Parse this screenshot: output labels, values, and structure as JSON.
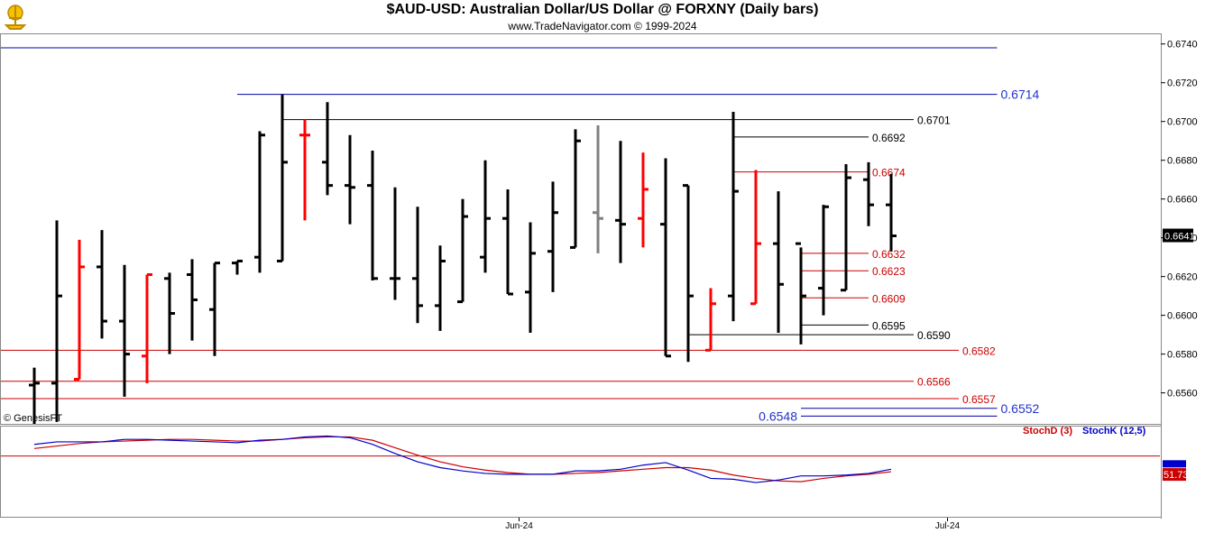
{
  "header": {
    "title": "$AUD-USD:  Australian Dollar/US Dollar @ FORXNY  (Daily bars)",
    "subtitle": "www.TradeNavigator.com © 1999-2024",
    "copyright": "© GenesisFT"
  },
  "colors": {
    "bar_up_default": "#000000",
    "bar_red": "#ff0000",
    "bar_gray": "#808080",
    "level_blue": "#0000aa",
    "level_red": "#cc0000",
    "level_black": "#000000",
    "stoch_d": "#cc0000",
    "stoch_k": "#0000cc"
  },
  "chart_data": [
    {
      "type": "ohlc",
      "title": "$AUD-USD:  Australian Dollar/US Dollar @ FORXNY  (Daily bars)",
      "ylim": [
        0.6544,
        0.6745
      ],
      "y_ticks": [
        "0.6740",
        "0.6720",
        "0.6700",
        "0.6680",
        "0.6660",
        "0.6640",
        "0.6620",
        "0.6600",
        "0.6580",
        "0.6560"
      ],
      "last_price_label": "0.6641",
      "x_labels": [
        {
          "label": "Jun-24",
          "index": 21.5
        },
        {
          "label": "Jul-24",
          "index": 40.5
        }
      ],
      "bars": [
        {
          "o": 0.6564,
          "h": 0.6573,
          "l": 0.6544,
          "c": 0.6565,
          "color": "black"
        },
        {
          "o": 0.6565,
          "h": 0.6649,
          "l": 0.6545,
          "c": 0.661,
          "color": "black"
        },
        {
          "o": 0.6567,
          "h": 0.6639,
          "l": 0.6567,
          "c": 0.6625,
          "color": "red"
        },
        {
          "o": 0.6625,
          "h": 0.6644,
          "l": 0.6588,
          "c": 0.6597,
          "color": "black"
        },
        {
          "o": 0.6597,
          "h": 0.6626,
          "l": 0.6558,
          "c": 0.658,
          "color": "black"
        },
        {
          "o": 0.6579,
          "h": 0.6621,
          "l": 0.6565,
          "c": 0.6621,
          "color": "red"
        },
        {
          "o": 0.6619,
          "h": 0.6622,
          "l": 0.658,
          "c": 0.6601,
          "color": "black"
        },
        {
          "o": 0.6621,
          "h": 0.6629,
          "l": 0.6587,
          "c": 0.6608,
          "color": "black"
        },
        {
          "o": 0.6603,
          "h": 0.6627,
          "l": 0.6579,
          "c": 0.6627,
          "color": "black"
        },
        {
          "o": 0.6627,
          "h": 0.6628,
          "l": 0.6621,
          "c": 0.6628,
          "color": "black"
        },
        {
          "o": 0.663,
          "h": 0.6695,
          "l": 0.6622,
          "c": 0.6693,
          "color": "black"
        },
        {
          "o": 0.6628,
          "h": 0.6714,
          "l": 0.6628,
          "c": 0.6679,
          "color": "black"
        },
        {
          "o": 0.6693,
          "h": 0.6701,
          "l": 0.6649,
          "c": 0.6693,
          "color": "red"
        },
        {
          "o": 0.6679,
          "h": 0.671,
          "l": 0.6662,
          "c": 0.6667,
          "color": "black"
        },
        {
          "o": 0.6667,
          "h": 0.6693,
          "l": 0.6647,
          "c": 0.6666,
          "color": "black"
        },
        {
          "o": 0.6667,
          "h": 0.6685,
          "l": 0.6618,
          "c": 0.6619,
          "color": "black"
        },
        {
          "o": 0.6619,
          "h": 0.6666,
          "l": 0.6608,
          "c": 0.6619,
          "color": "black"
        },
        {
          "o": 0.6619,
          "h": 0.6656,
          "l": 0.6596,
          "c": 0.6605,
          "color": "black"
        },
        {
          "o": 0.6605,
          "h": 0.6636,
          "l": 0.6592,
          "c": 0.6628,
          "color": "black"
        },
        {
          "o": 0.6607,
          "h": 0.666,
          "l": 0.6607,
          "c": 0.6651,
          "color": "black"
        },
        {
          "o": 0.663,
          "h": 0.668,
          "l": 0.6622,
          "c": 0.665,
          "color": "black"
        },
        {
          "o": 0.665,
          "h": 0.6665,
          "l": 0.6611,
          "c": 0.6611,
          "color": "black"
        },
        {
          "o": 0.6612,
          "h": 0.6648,
          "l": 0.6591,
          "c": 0.6632,
          "color": "black"
        },
        {
          "o": 0.6633,
          "h": 0.6669,
          "l": 0.6612,
          "c": 0.6653,
          "color": "black"
        },
        {
          "o": 0.6635,
          "h": 0.6696,
          "l": 0.6635,
          "c": 0.669,
          "color": "black"
        },
        {
          "o": 0.6653,
          "h": 0.6698,
          "l": 0.6632,
          "c": 0.665,
          "color": "gray"
        },
        {
          "o": 0.6649,
          "h": 0.669,
          "l": 0.6627,
          "c": 0.6647,
          "color": "black"
        },
        {
          "o": 0.665,
          "h": 0.6684,
          "l": 0.6635,
          "c": 0.6665,
          "color": "red"
        },
        {
          "o": 0.6647,
          "h": 0.6681,
          "l": 0.6579,
          "c": 0.6579,
          "color": "black"
        },
        {
          "o": 0.6667,
          "h": 0.6667,
          "l": 0.6576,
          "c": 0.661,
          "color": "black"
        },
        {
          "o": 0.6582,
          "h": 0.6614,
          "l": 0.6582,
          "c": 0.6606,
          "color": "red"
        },
        {
          "o": 0.661,
          "h": 0.6705,
          "l": 0.6597,
          "c": 0.6664,
          "color": "black"
        },
        {
          "o": 0.6606,
          "h": 0.6675,
          "l": 0.6606,
          "c": 0.6637,
          "color": "red"
        },
        {
          "o": 0.6637,
          "h": 0.6664,
          "l": 0.6591,
          "c": 0.6616,
          "color": "black"
        },
        {
          "o": 0.6637,
          "h": 0.6635,
          "l": 0.6585,
          "c": 0.661,
          "color": "black"
        },
        {
          "o": 0.6614,
          "h": 0.6657,
          "l": 0.66,
          "c": 0.6656,
          "color": "black"
        },
        {
          "o": 0.6613,
          "h": 0.6678,
          "l": 0.6613,
          "c": 0.6671,
          "color": "black"
        },
        {
          "o": 0.667,
          "h": 0.6679,
          "l": 0.6646,
          "c": 0.6657,
          "color": "black"
        },
        {
          "o": 0.6657,
          "h": 0.6673,
          "l": 0.6633,
          "c": 0.6641,
          "color": "black"
        }
      ],
      "levels": [
        {
          "value": 0.6738,
          "label": "0.6738",
          "color": "blue",
          "from": -9.0,
          "to": 42.7,
          "label_side": "left"
        },
        {
          "value": 0.6714,
          "label": "0.6714",
          "color": "blue",
          "from": 9.0,
          "to": 42.7,
          "label_side": "right"
        },
        {
          "value": 0.6701,
          "label": "0.6701",
          "color": "black",
          "from": 11.0,
          "to": 39.0,
          "label_side": "right"
        },
        {
          "value": 0.6692,
          "label": "0.6692",
          "color": "black",
          "from": 31.0,
          "to": 37.0,
          "label_side": "right"
        },
        {
          "value": 0.6674,
          "label": "0.6674",
          "color": "red",
          "from": 31.0,
          "to": 37.0,
          "label_side": "right"
        },
        {
          "value": 0.6632,
          "label": "0.6632",
          "color": "red",
          "from": 34.0,
          "to": 37.0,
          "label_side": "right"
        },
        {
          "value": 0.6623,
          "label": "0.6623",
          "color": "red",
          "from": 34.0,
          "to": 37.0,
          "label_side": "right"
        },
        {
          "value": 0.6609,
          "label": "0.6609",
          "color": "red",
          "from": 34.0,
          "to": 37.0,
          "label_side": "right"
        },
        {
          "value": 0.6595,
          "label": "0.6595",
          "color": "black",
          "from": 34.0,
          "to": 37.0,
          "label_side": "right"
        },
        {
          "value": 0.659,
          "label": "0.6590",
          "color": "black",
          "from": 29.0,
          "to": 39.0,
          "label_side": "right"
        },
        {
          "value": 0.6582,
          "label": "0.6582",
          "color": "red",
          "from": -1.5,
          "to": 41.0,
          "label_side": "right"
        },
        {
          "value": 0.6566,
          "label": "0.6566",
          "color": "red",
          "from": -1.5,
          "to": 39.0,
          "label_side": "right"
        },
        {
          "value": 0.6557,
          "label": "0.6557",
          "color": "red",
          "from": -1.5,
          "to": 41.0,
          "label_side": "right"
        },
        {
          "value": 0.6552,
          "label": "0.6552",
          "color": "blue",
          "from": 34.0,
          "to": 42.7,
          "label_side": "right"
        },
        {
          "value": 0.6548,
          "label": "0.6548",
          "color": "blue",
          "from": 34.0,
          "to": 42.7,
          "label_side": "left"
        }
      ]
    },
    {
      "type": "line",
      "ylim": [
        0,
        100
      ],
      "reference_line": 70,
      "series": [
        {
          "name": "StochD (3)",
          "color": "red",
          "last_label": "51.73",
          "values": [
            79,
            82,
            85,
            87,
            88,
            89,
            90,
            90,
            89,
            88,
            88,
            90,
            92,
            93,
            93,
            89,
            80,
            71,
            63,
            57,
            53,
            50,
            48,
            48,
            49,
            50,
            52,
            54,
            56,
            56,
            53,
            47,
            43,
            40,
            39,
            43,
            46,
            48,
            51
          ]
        },
        {
          "name": "StochK (12,5)",
          "color": "blue",
          "last_label": "",
          "values": [
            84,
            87,
            87,
            87,
            90,
            90,
            89,
            88,
            87,
            86,
            89,
            90,
            93,
            94,
            92,
            84,
            73,
            63,
            56,
            52,
            49,
            48,
            48,
            48,
            52,
            52,
            54,
            59,
            62,
            53,
            43,
            42,
            38,
            41,
            46,
            46,
            47,
            49,
            54
          ]
        }
      ]
    }
  ]
}
